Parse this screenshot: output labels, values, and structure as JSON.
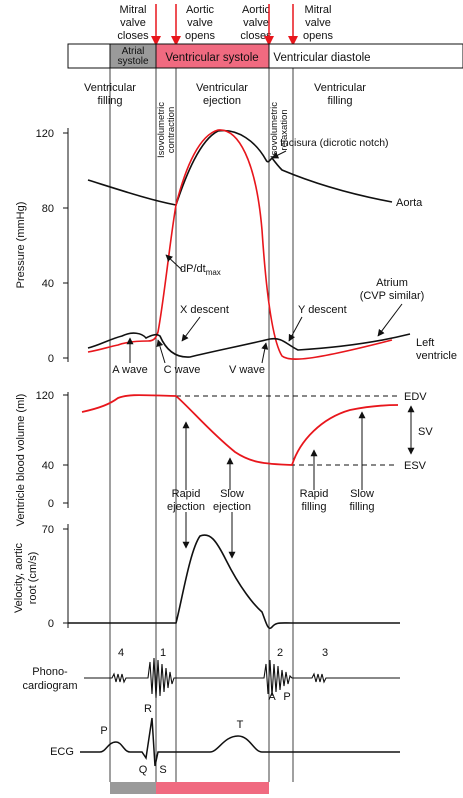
{
  "colors": {
    "red": "#e8161c",
    "pink": "#f06a80",
    "gray": "#9a9a9a",
    "black": "#111111"
  },
  "events": [
    {
      "lines": [
        "Mitral",
        "valve",
        "closes"
      ]
    },
    {
      "lines": [
        "Aortic",
        "valve",
        "opens"
      ]
    },
    {
      "lines": [
        "Aortic",
        "valve",
        "closes"
      ]
    },
    {
      "lines": [
        "Mitral",
        "valve",
        "opens"
      ]
    }
  ],
  "phase_bar": {
    "atrial": [
      "Atrial",
      "systole"
    ],
    "ventricular_systole": "Ventricular systole",
    "ventricular_diastole": "Ventricular diastole"
  },
  "phase_labels": {
    "ventricular_filling_left": [
      "Ventricular",
      "filling"
    ],
    "isovolumetric_contraction": [
      "Isovolumetric",
      "contraction"
    ],
    "ventricular_ejection": [
      "Ventricular",
      "ejection"
    ],
    "isovolumetric_relaxation": [
      "Isovolumetric",
      "relaxation"
    ],
    "ventricular_filling_right": [
      "Ventricular",
      "filling"
    ]
  },
  "pressure_panel": {
    "ylabel": "Pressure (mmHg)",
    "ticks": [
      "120",
      "80",
      "40",
      "0"
    ],
    "labels": {
      "incisura": "Incisura (dicrotic notch)",
      "aorta": "Aorta",
      "dpdt": "dP/dt",
      "dpdt_sub": "max",
      "x_descent": "X descent",
      "y_descent": "Y descent",
      "atrium": [
        "Atrium",
        "(CVP similar)"
      ],
      "left_ventricle": [
        "Left",
        "ventricle"
      ],
      "a_wave": "A wave",
      "c_wave": "C wave",
      "v_wave": "V wave"
    }
  },
  "volume_panel": {
    "ylabel": "Ventricle blood volume (ml)",
    "ticks": [
      "120",
      "40",
      "0"
    ],
    "labels": {
      "edv": "EDV",
      "sv": "SV",
      "esv": "ESV",
      "rapid_ejection": [
        "Rapid",
        "ejection"
      ],
      "slow_ejection": [
        "Slow",
        "ejection"
      ],
      "rapid_filling": [
        "Rapid",
        "filling"
      ],
      "slow_filling": [
        "Slow",
        "filling"
      ]
    }
  },
  "velocity_panel": {
    "ylabel": [
      "Velocity, aortic",
      "root (cm/s)"
    ],
    "ticks": [
      "70",
      "0"
    ]
  },
  "phono_panel": {
    "ylabel": [
      "Phono-",
      "cardiogram"
    ],
    "sounds": [
      "4",
      "1",
      "2",
      "3"
    ],
    "valves": [
      "A",
      "P"
    ]
  },
  "ecg_panel": {
    "ylabel": "ECG",
    "waves": [
      "P",
      "R",
      "Q",
      "S",
      "T"
    ]
  }
}
